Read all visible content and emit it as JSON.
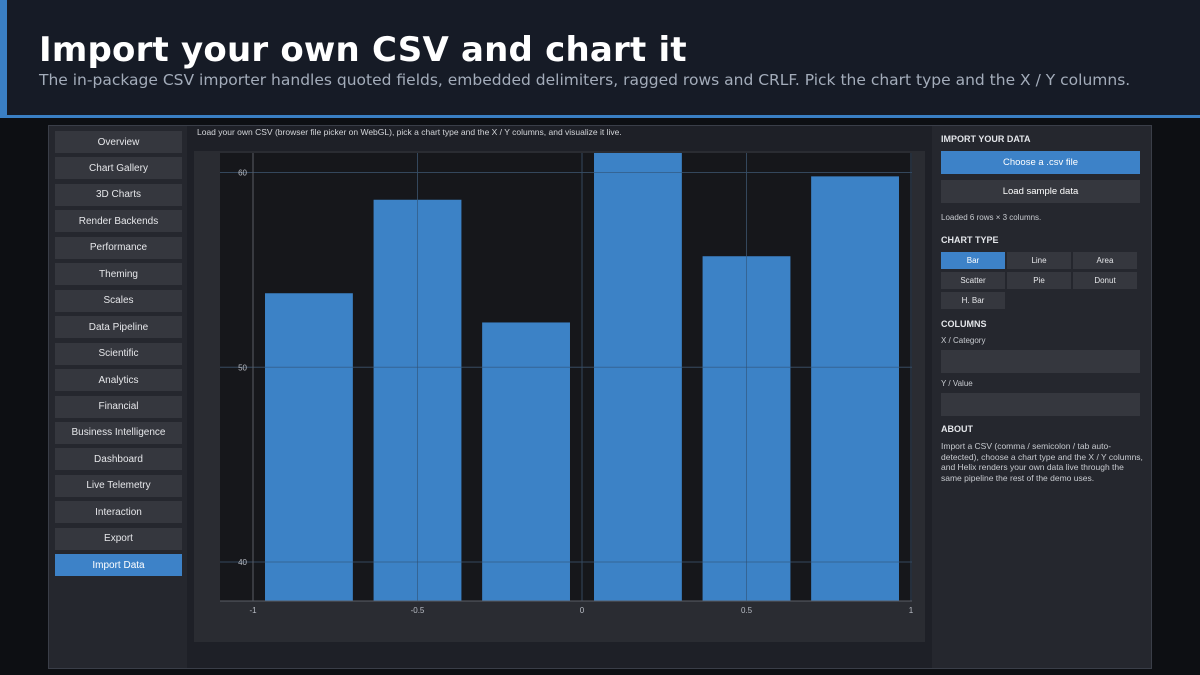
{
  "header": {
    "title": "Import your own CSV and chart it",
    "subtitle": "The in-package CSV importer handles quoted fields, embedded delimiters, ragged rows and CRLF. Pick the chart type and the X / Y columns."
  },
  "sidebar": {
    "items": [
      {
        "label": "Overview"
      },
      {
        "label": "Chart Gallery"
      },
      {
        "label": "3D Charts"
      },
      {
        "label": "Render Backends"
      },
      {
        "label": "Performance"
      },
      {
        "label": "Theming"
      },
      {
        "label": "Scales"
      },
      {
        "label": "Data Pipeline"
      },
      {
        "label": "Scientific"
      },
      {
        "label": "Analytics"
      },
      {
        "label": "Financial"
      },
      {
        "label": "Business Intelligence"
      },
      {
        "label": "Dashboard"
      },
      {
        "label": "Live Telemetry"
      },
      {
        "label": "Interaction"
      },
      {
        "label": "Export"
      },
      {
        "label": "Import Data",
        "active": true
      }
    ]
  },
  "main": {
    "caption": "Load your own CSV (browser file picker on WebGL), pick a chart type and the X / Y columns, and visualize it live."
  },
  "panel": {
    "import_heading": "IMPORT YOUR DATA",
    "choose_button": "Choose a .csv file",
    "sample_button": "Load sample data",
    "status": "Loaded 6 rows × 3 columns.",
    "chart_type_heading": "CHART TYPE",
    "chart_types": [
      {
        "label": "Bar",
        "active": true
      },
      {
        "label": "Line"
      },
      {
        "label": "Area"
      },
      {
        "label": "Scatter"
      },
      {
        "label": "Pie"
      },
      {
        "label": "Donut"
      },
      {
        "label": "H. Bar"
      }
    ],
    "columns_heading": "COLUMNS",
    "x_label": "X / Category",
    "x_value": "",
    "y_label": "Y / Value",
    "y_value": "",
    "about_heading": "ABOUT",
    "about_text": "Import a CSV (comma / semicolon / tab auto-detected), choose a chart type and the X / Y columns, and Helix renders your own data live through the same pipeline the rest of the demo uses."
  },
  "colors": {
    "accent": "#3d82c8",
    "bar": "#3c82c6",
    "plot_bg": "#16171b",
    "grid": "#3b3e45"
  },
  "chart_data": {
    "type": "bar",
    "title": "",
    "xlabel": "",
    "ylabel": "",
    "x": [
      -0.83,
      -0.5,
      -0.17,
      0.17,
      0.5,
      0.83
    ],
    "values": [
      53.8,
      58.6,
      52.3,
      61.0,
      55.7,
      59.8
    ],
    "bar_width": 0.267,
    "xlim": [
      -1,
      1
    ],
    "ylim": [
      38,
      61
    ],
    "xticks": [
      "-1",
      "-0.5",
      "0",
      "0.5",
      "1"
    ],
    "yticks": [
      "40",
      "50",
      "60"
    ],
    "grid": true,
    "legend": "none"
  }
}
